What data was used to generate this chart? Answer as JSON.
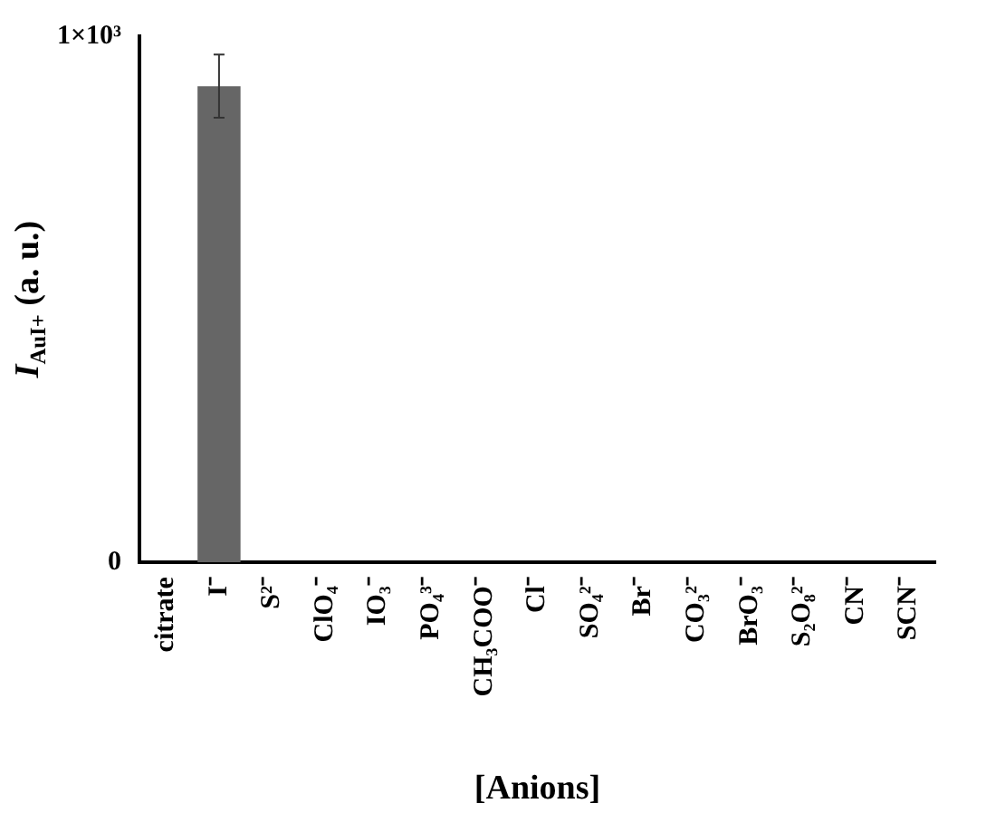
{
  "chart_data": {
    "type": "bar",
    "xlabel": "[Anions]",
    "ylabel": "I$_{AuI+}$ (a. u.)",
    "categories": [
      "citrate",
      "I⁻",
      "S²⁻",
      "ClO₄⁻",
      "IO₃⁻",
      "PO₄³⁻",
      "CH₃COO⁻",
      "Cl⁻",
      "SO₄²⁻",
      "Br⁻",
      "CO₃²⁻",
      "BrO₃⁻",
      "S₂O₈²⁻",
      "CN⁻",
      "SCN⁻"
    ],
    "values": [
      0,
      905,
      0,
      0,
      0,
      0,
      0,
      0,
      0,
      0,
      0,
      0,
      0,
      0,
      0
    ],
    "errors": [
      null,
      60,
      null,
      null,
      null,
      null,
      null,
      null,
      null,
      null,
      null,
      null,
      null,
      null,
      null
    ],
    "color": "#666666",
    "ylim": [
      0,
      1000
    ],
    "yticks": [
      0,
      {
        "value": 1000,
        "label": "1×10³"
      }
    ],
    "grid": false,
    "legend": false
  }
}
